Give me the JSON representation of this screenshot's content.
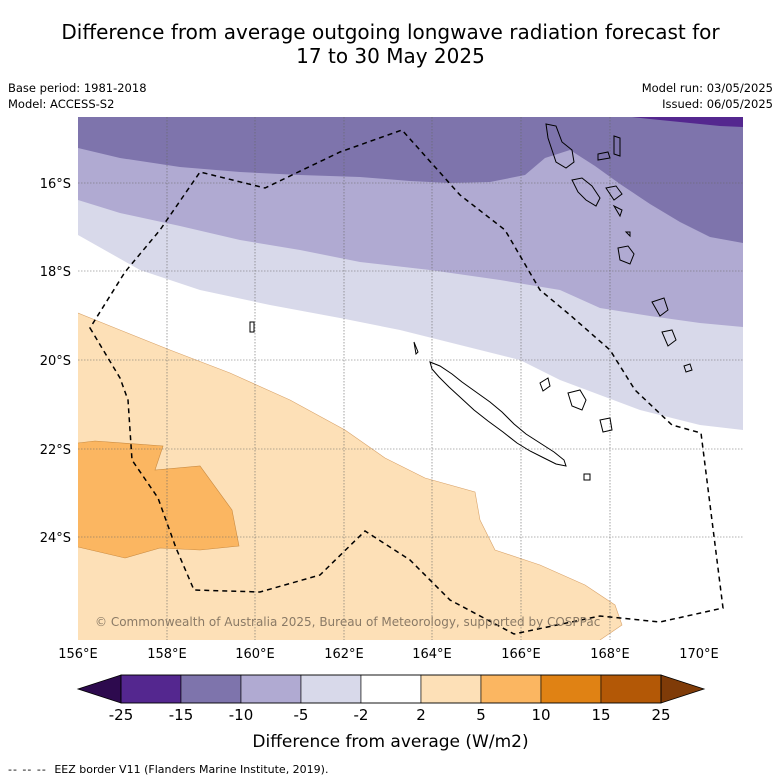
{
  "title_line1": "Difference from average outgoing longwave radiation forecast for",
  "title_line2": "17 to 30 May 2025",
  "base_period": "Base period: 1981-2018",
  "model": "Model: ACCESS-S2",
  "model_run": "Model run: 03/05/2025",
  "issued": "Issued: 06/05/2025",
  "lon_ticks": [
    "156°E",
    "158°E",
    "160°E",
    "162°E",
    "164°E",
    "166°E",
    "168°E",
    "170°E"
  ],
  "lat_ticks": [
    "16°S",
    "18°S",
    "20°S",
    "22°S",
    "24°S"
  ],
  "copyright": "© Commonwealth of Australia 2025, Bureau of Meteorology, supported by COSPPac",
  "colorbar": {
    "ticks": [
      "-25",
      "-15",
      "-10",
      "-5",
      "-2",
      "2",
      "5",
      "10",
      "15",
      "25"
    ],
    "colors": [
      "#2d0a4e",
      "#54278f",
      "#7e74ac",
      "#b0aad2",
      "#d8d9ea",
      "#ffffff",
      "#fde0b7",
      "#fbb661",
      "#e08214",
      "#b35806",
      "#7f3b08"
    ],
    "label": "Difference from average (W/m2)"
  },
  "footnote_dash": "-- -- --",
  "footnote": "EEZ border V11 (Flanders Marine Institute, 2019)."
}
